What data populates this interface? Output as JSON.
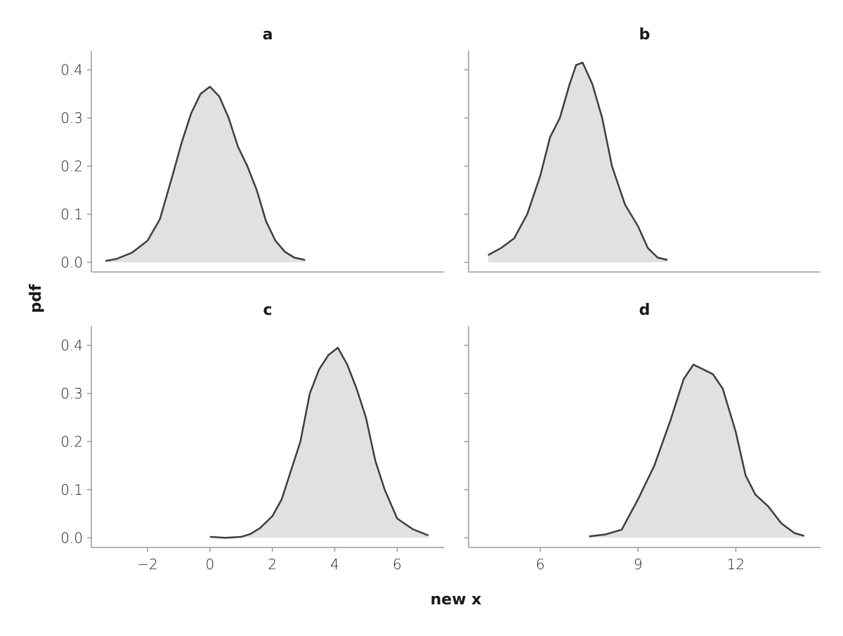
{
  "chart_data": {
    "type": "area",
    "xlabel": "new x",
    "ylabel": "pdf",
    "ylim": [
      -0.02,
      0.44
    ],
    "yticks": [
      0.0,
      0.1,
      0.2,
      0.3,
      0.4
    ],
    "ytick_labels": [
      "0.0",
      "0.1",
      "0.2",
      "0.3",
      "0.4"
    ],
    "grid": false,
    "legend": "none",
    "colors": {
      "line": "#3d3d3d",
      "fill": "#e1e1e1",
      "spine": "#9a9a9a"
    },
    "columns": [
      {
        "xlim": [
          -3.8,
          7.5
        ],
        "xticks": [
          -2,
          0,
          2,
          4,
          6
        ],
        "xtick_labels": [
          "−2",
          "0",
          "2",
          "4",
          "6"
        ]
      },
      {
        "xlim": [
          3.8,
          14.6
        ],
        "xticks": [
          6,
          9,
          12
        ],
        "xtick_labels": [
          "6",
          "9",
          "12"
        ]
      }
    ],
    "panels": [
      {
        "title": "a",
        "column": 0,
        "row": 0,
        "x": [
          -3.35,
          -3.0,
          -2.5,
          -2.0,
          -1.6,
          -1.2,
          -0.9,
          -0.6,
          -0.3,
          0.0,
          0.3,
          0.6,
          0.9,
          1.2,
          1.5,
          1.8,
          2.1,
          2.4,
          2.7,
          3.05
        ],
        "y": [
          0.003,
          0.007,
          0.02,
          0.045,
          0.09,
          0.18,
          0.25,
          0.31,
          0.35,
          0.365,
          0.345,
          0.3,
          0.24,
          0.2,
          0.15,
          0.085,
          0.045,
          0.022,
          0.01,
          0.005
        ]
      },
      {
        "title": "b",
        "column": 1,
        "row": 0,
        "x": [
          4.4,
          4.8,
          5.2,
          5.6,
          6.0,
          6.3,
          6.6,
          6.9,
          7.1,
          7.3,
          7.6,
          7.9,
          8.2,
          8.6,
          9.0,
          9.3,
          9.6,
          9.9
        ],
        "y": [
          0.015,
          0.03,
          0.05,
          0.1,
          0.18,
          0.26,
          0.3,
          0.37,
          0.41,
          0.415,
          0.37,
          0.3,
          0.2,
          0.12,
          0.075,
          0.03,
          0.01,
          0.005
        ]
      },
      {
        "title": "c",
        "column": 0,
        "row": 1,
        "x": [
          0.0,
          0.5,
          1.0,
          1.3,
          1.6,
          2.0,
          2.3,
          2.6,
          2.9,
          3.2,
          3.5,
          3.8,
          4.1,
          4.4,
          4.7,
          5.0,
          5.3,
          5.6,
          6.0,
          6.5,
          7.0
        ],
        "y": [
          0.002,
          0.0,
          0.002,
          0.008,
          0.02,
          0.045,
          0.08,
          0.14,
          0.2,
          0.3,
          0.35,
          0.38,
          0.395,
          0.36,
          0.31,
          0.25,
          0.16,
          0.1,
          0.04,
          0.018,
          0.005
        ]
      },
      {
        "title": "d",
        "column": 1,
        "row": 1,
        "x": [
          7.5,
          8.0,
          8.5,
          9.0,
          9.5,
          10.0,
          10.4,
          10.7,
          11.0,
          11.3,
          11.6,
          12.0,
          12.3,
          12.6,
          13.0,
          13.4,
          13.8,
          14.1
        ],
        "y": [
          0.003,
          0.007,
          0.017,
          0.08,
          0.15,
          0.245,
          0.33,
          0.36,
          0.35,
          0.34,
          0.31,
          0.22,
          0.13,
          0.09,
          0.065,
          0.03,
          0.01,
          0.004
        ]
      }
    ]
  }
}
